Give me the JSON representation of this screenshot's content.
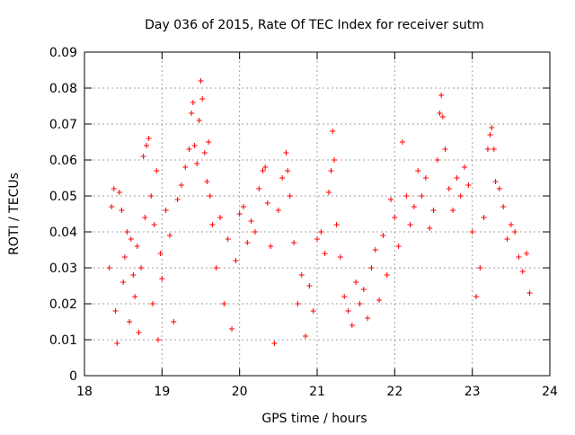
{
  "chart_data": {
    "type": "scatter",
    "title": "Day 036 of 2015, Rate Of TEC Index for receiver sutm",
    "xlabel": "GPS time / hours",
    "ylabel": "ROTI / TECUs",
    "xlim": [
      18,
      24
    ],
    "ylim": [
      0,
      0.09
    ],
    "x_ticks": [
      18,
      19,
      20,
      21,
      22,
      23,
      24
    ],
    "x_tick_labels": [
      "18",
      "19",
      "20",
      "21",
      "22",
      "23",
      "24"
    ],
    "y_ticks": [
      0,
      0.01,
      0.02,
      0.03,
      0.04,
      0.05,
      0.06,
      0.07,
      0.08,
      0.09
    ],
    "y_tick_labels": [
      "0",
      "0.01",
      "0.02",
      "0.03",
      "0.04",
      "0.05",
      "0.06",
      "0.07",
      "0.08",
      "0.09"
    ],
    "grid": true,
    "marker": "+",
    "marker_color": "#ff0000",
    "data_range_x": [
      18.3,
      23.75
    ],
    "series": [
      {
        "name": "ROTI",
        "points": [
          [
            18.32,
            0.03
          ],
          [
            18.35,
            0.047
          ],
          [
            18.38,
            0.052
          ],
          [
            18.4,
            0.018
          ],
          [
            18.42,
            0.009
          ],
          [
            18.45,
            0.051
          ],
          [
            18.48,
            0.046
          ],
          [
            18.5,
            0.026
          ],
          [
            18.52,
            0.033
          ],
          [
            18.55,
            0.04
          ],
          [
            18.58,
            0.015
          ],
          [
            18.6,
            0.038
          ],
          [
            18.63,
            0.028
          ],
          [
            18.65,
            0.022
          ],
          [
            18.68,
            0.036
          ],
          [
            18.7,
            0.012
          ],
          [
            18.73,
            0.03
          ],
          [
            18.76,
            0.061
          ],
          [
            18.78,
            0.044
          ],
          [
            18.8,
            0.064
          ],
          [
            18.83,
            0.066
          ],
          [
            18.86,
            0.05
          ],
          [
            18.88,
            0.02
          ],
          [
            18.9,
            0.042
          ],
          [
            18.93,
            0.057
          ],
          [
            18.95,
            0.01
          ],
          [
            18.98,
            0.034
          ],
          [
            19.0,
            0.027
          ],
          [
            19.05,
            0.046
          ],
          [
            19.1,
            0.039
          ],
          [
            19.15,
            0.015
          ],
          [
            19.2,
            0.049
          ],
          [
            19.25,
            0.053
          ],
          [
            19.3,
            0.058
          ],
          [
            19.35,
            0.063
          ],
          [
            19.38,
            0.073
          ],
          [
            19.4,
            0.076
          ],
          [
            19.42,
            0.064
          ],
          [
            19.45,
            0.059
          ],
          [
            19.48,
            0.071
          ],
          [
            19.5,
            0.082
          ],
          [
            19.52,
            0.077
          ],
          [
            19.55,
            0.062
          ],
          [
            19.58,
            0.054
          ],
          [
            19.6,
            0.065
          ],
          [
            19.62,
            0.05
          ],
          [
            19.65,
            0.042
          ],
          [
            19.7,
            0.03
          ],
          [
            19.75,
            0.044
          ],
          [
            19.8,
            0.02
          ],
          [
            19.85,
            0.038
          ],
          [
            19.9,
            0.013
          ],
          [
            19.95,
            0.032
          ],
          [
            20.0,
            0.045
          ],
          [
            20.05,
            0.047
          ],
          [
            20.1,
            0.037
          ],
          [
            20.15,
            0.043
          ],
          [
            20.2,
            0.04
          ],
          [
            20.25,
            0.052
          ],
          [
            20.3,
            0.057
          ],
          [
            20.33,
            0.058
          ],
          [
            20.36,
            0.048
          ],
          [
            20.4,
            0.036
          ],
          [
            20.45,
            0.009
          ],
          [
            20.5,
            0.046
          ],
          [
            20.55,
            0.055
          ],
          [
            20.6,
            0.062
          ],
          [
            20.62,
            0.057
          ],
          [
            20.65,
            0.05
          ],
          [
            20.7,
            0.037
          ],
          [
            20.75,
            0.02
          ],
          [
            20.8,
            0.028
          ],
          [
            20.85,
            0.011
          ],
          [
            20.9,
            0.025
          ],
          [
            20.95,
            0.018
          ],
          [
            21.0,
            0.038
          ],
          [
            21.05,
            0.04
          ],
          [
            21.1,
            0.034
          ],
          [
            21.15,
            0.051
          ],
          [
            21.18,
            0.057
          ],
          [
            21.2,
            0.068
          ],
          [
            21.22,
            0.06
          ],
          [
            21.25,
            0.042
          ],
          [
            21.3,
            0.033
          ],
          [
            21.35,
            0.022
          ],
          [
            21.4,
            0.018
          ],
          [
            21.45,
            0.014
          ],
          [
            21.5,
            0.026
          ],
          [
            21.55,
            0.02
          ],
          [
            21.6,
            0.024
          ],
          [
            21.65,
            0.016
          ],
          [
            21.7,
            0.03
          ],
          [
            21.75,
            0.035
          ],
          [
            21.8,
            0.021
          ],
          [
            21.85,
            0.039
          ],
          [
            21.9,
            0.028
          ],
          [
            21.95,
            0.049
          ],
          [
            22.0,
            0.044
          ],
          [
            22.05,
            0.036
          ],
          [
            22.1,
            0.065
          ],
          [
            22.15,
            0.05
          ],
          [
            22.2,
            0.042
          ],
          [
            22.25,
            0.047
          ],
          [
            22.3,
            0.057
          ],
          [
            22.35,
            0.05
          ],
          [
            22.4,
            0.055
          ],
          [
            22.45,
            0.041
          ],
          [
            22.5,
            0.046
          ],
          [
            22.55,
            0.06
          ],
          [
            22.58,
            0.073
          ],
          [
            22.6,
            0.078
          ],
          [
            22.62,
            0.072
          ],
          [
            22.65,
            0.063
          ],
          [
            22.7,
            0.052
          ],
          [
            22.75,
            0.046
          ],
          [
            22.8,
            0.055
          ],
          [
            22.85,
            0.05
          ],
          [
            22.9,
            0.058
          ],
          [
            22.95,
            0.053
          ],
          [
            23.0,
            0.04
          ],
          [
            23.05,
            0.022
          ],
          [
            23.1,
            0.03
          ],
          [
            23.15,
            0.044
          ],
          [
            23.2,
            0.063
          ],
          [
            23.23,
            0.067
          ],
          [
            23.25,
            0.069
          ],
          [
            23.28,
            0.063
          ],
          [
            23.3,
            0.054
          ],
          [
            23.35,
            0.052
          ],
          [
            23.4,
            0.047
          ],
          [
            23.45,
            0.038
          ],
          [
            23.5,
            0.042
          ],
          [
            23.55,
            0.04
          ],
          [
            23.6,
            0.033
          ],
          [
            23.65,
            0.029
          ],
          [
            23.7,
            0.034
          ],
          [
            23.74,
            0.023
          ]
        ]
      }
    ]
  }
}
